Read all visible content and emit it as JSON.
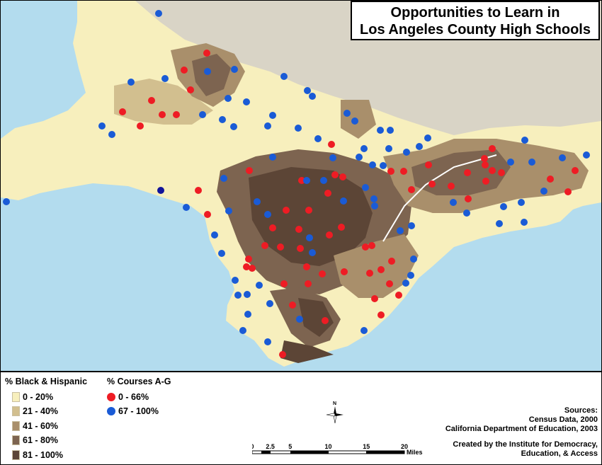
{
  "title": {
    "line1": "Opportunities to Learn in",
    "line2": "Los Angeles County High Schools"
  },
  "legend": {
    "choropleth_title": "% Black & Hispanic",
    "choropleth_classes": [
      {
        "label": "0 - 20%",
        "color": "#f7efbd"
      },
      {
        "label": "21 - 40%",
        "color": "#d2bf8f"
      },
      {
        "label": "41 - 60%",
        "color": "#a98f6b"
      },
      {
        "label": "61 - 80%",
        "color": "#7d6450"
      },
      {
        "label": "81 - 100%",
        "color": "#5c4536"
      }
    ],
    "points_title": "% Courses A-G",
    "point_classes": [
      {
        "label": "0 - 66%",
        "color": "#ee1c24"
      },
      {
        "label": "67 - 100%",
        "color": "#1a5bd6"
      }
    ]
  },
  "sources": {
    "heading": "Sources:",
    "lines": [
      "Census Data, 2000",
      "California Department of Education, 2003"
    ]
  },
  "credit": {
    "lines": [
      "Created by the Institute for Democracy,",
      "Education, & Access"
    ]
  },
  "scale": {
    "ticks": [
      "0",
      "2.5",
      "5",
      "10",
      "15",
      "20"
    ],
    "tick_values": [
      0,
      2.5,
      5,
      10,
      15,
      20
    ],
    "unit": "Miles"
  },
  "north_label": "N",
  "colors": {
    "water": "#b3dcee",
    "land": "#f7efbd",
    "mountains": "#d9d4c6"
  }
}
